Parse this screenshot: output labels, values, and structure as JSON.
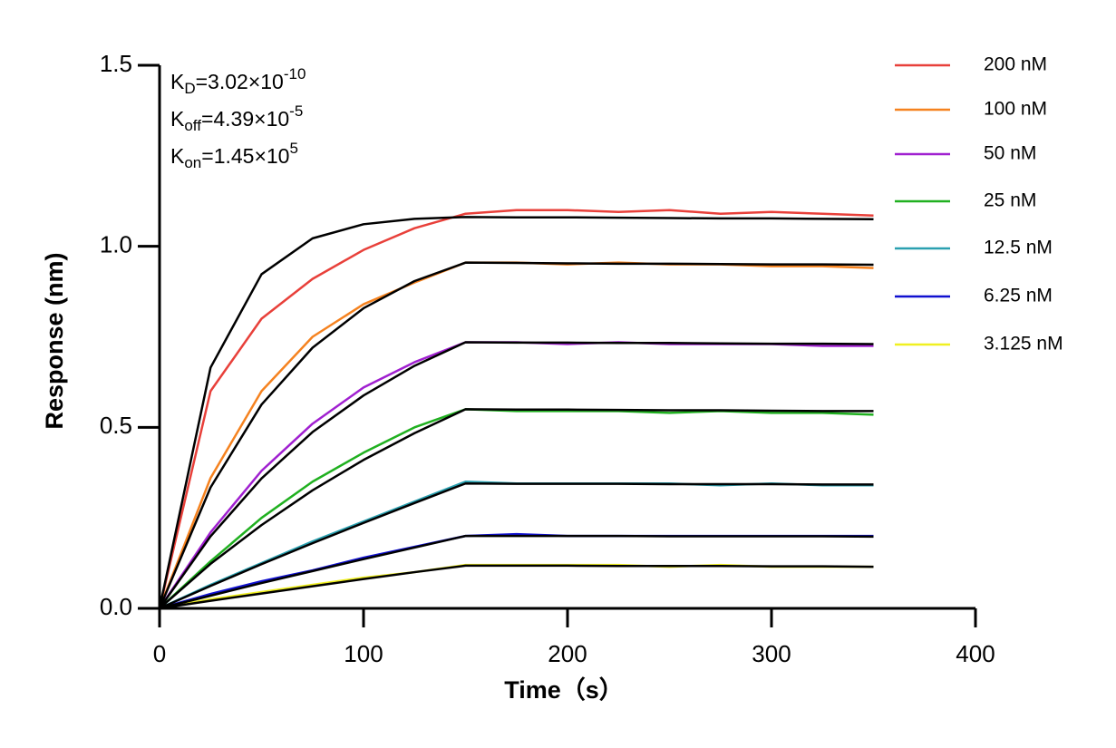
{
  "chart_data": {
    "type": "line",
    "xlabel": "Time（s）",
    "ylabel": "Response (nm)",
    "annotations": [
      {
        "main": "K",
        "sub": "D",
        "rest": "=3.02×10",
        "sup": "-10"
      },
      {
        "main": "K",
        "sub": "off",
        "rest": "=4.39×10",
        "sup": "-5"
      },
      {
        "main": "K",
        "sub": "on",
        "rest": "=1.45×10",
        "sup": "5"
      }
    ],
    "xlim": [
      0,
      400
    ],
    "xticks": [
      0,
      100,
      200,
      300,
      400
    ],
    "ylim": [
      0,
      1.5
    ],
    "yticks": [
      {
        "value": 0,
        "label": "0.0"
      },
      0.5,
      {
        "value": 1,
        "label": "1.0"
      },
      1.5
    ],
    "x": [
      0,
      25,
      50,
      75,
      100,
      125,
      150,
      175,
      200,
      225,
      250,
      275,
      300,
      325,
      350
    ],
    "series": [
      {
        "name": "200 nM",
        "color": "#e8403a",
        "values": [
          0,
          0.6,
          0.8,
          0.91,
          0.99,
          1.05,
          1.09,
          1.1,
          1.1,
          1.095,
          1.1,
          1.09,
          1.095,
          1.09,
          1.085
        ]
      },
      {
        "name": "100 nM",
        "color": "#f5821f",
        "values": [
          0,
          0.36,
          0.6,
          0.75,
          0.84,
          0.9,
          0.955,
          0.955,
          0.95,
          0.955,
          0.95,
          0.95,
          0.945,
          0.945,
          0.94
        ]
      },
      {
        "name": "50 nM",
        "color": "#a020d0",
        "values": [
          0,
          0.21,
          0.38,
          0.51,
          0.61,
          0.68,
          0.735,
          0.735,
          0.73,
          0.735,
          0.73,
          0.73,
          0.73,
          0.725,
          0.725
        ]
      },
      {
        "name": "25 nM",
        "color": "#20b020",
        "values": [
          0,
          0.13,
          0.25,
          0.35,
          0.43,
          0.5,
          0.55,
          0.545,
          0.545,
          0.545,
          0.54,
          0.545,
          0.54,
          0.54,
          0.535
        ]
      },
      {
        "name": "12.5 nM",
        "color": "#2aa0b0",
        "values": [
          0,
          0.065,
          0.125,
          0.185,
          0.24,
          0.295,
          0.35,
          0.345,
          0.345,
          0.345,
          0.345,
          0.34,
          0.345,
          0.34,
          0.34
        ]
      },
      {
        "name": "6.25 nM",
        "color": "#1010d0",
        "values": [
          0,
          0.04,
          0.075,
          0.105,
          0.14,
          0.17,
          0.2,
          0.205,
          0.2,
          0.2,
          0.2,
          0.2,
          0.2,
          0.2,
          0.2
        ]
      },
      {
        "name": "3.125 nM",
        "color": "#f0f020",
        "values": [
          0,
          0.025,
          0.045,
          0.065,
          0.085,
          0.1,
          0.12,
          0.12,
          0.12,
          0.12,
          0.115,
          0.12,
          0.115,
          0.115,
          0.115
        ]
      },
      {
        "color": "#000000",
        "values": [
          0,
          0.665,
          0.923,
          1.022,
          1.061,
          1.076,
          1.081,
          1.08,
          1.08,
          1.079,
          1.078,
          1.077,
          1.077,
          1.076,
          1.075
        ]
      },
      {
        "color": "#000000",
        "values": [
          0,
          0.334,
          0.563,
          0.72,
          0.829,
          0.904,
          0.955,
          0.954,
          0.953,
          0.952,
          0.952,
          0.951,
          0.95,
          0.95,
          0.949
        ]
      },
      {
        "color": "#000000",
        "values": [
          0,
          0.199,
          0.359,
          0.487,
          0.588,
          0.67,
          0.735,
          0.734,
          0.734,
          0.733,
          0.733,
          0.732,
          0.731,
          0.731,
          0.73
        ]
      },
      {
        "color": "#000000",
        "values": [
          0,
          0.123,
          0.23,
          0.326,
          0.41,
          0.484,
          0.55,
          0.549,
          0.549,
          0.548,
          0.547,
          0.547,
          0.546,
          0.545,
          0.545
        ]
      },
      {
        "color": "#000000",
        "values": [
          0,
          0.062,
          0.122,
          0.18,
          0.236,
          0.291,
          0.345,
          0.344,
          0.344,
          0.344,
          0.343,
          0.343,
          0.343,
          0.342,
          0.342
        ]
      },
      {
        "color": "#000000",
        "values": [
          0,
          0.035,
          0.07,
          0.103,
          0.136,
          0.168,
          0.2,
          0.2,
          0.2,
          0.2,
          0.199,
          0.199,
          0.199,
          0.199,
          0.198
        ]
      },
      {
        "color": "#000000",
        "values": [
          0,
          0.021,
          0.041,
          0.061,
          0.081,
          0.1,
          0.118,
          0.118,
          0.118,
          0.117,
          0.117,
          0.117,
          0.116,
          0.116,
          0.115
        ]
      }
    ]
  }
}
